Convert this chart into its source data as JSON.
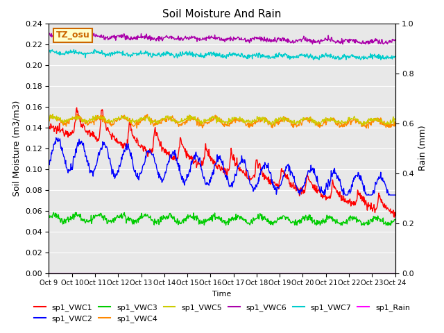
{
  "title": "Soil Moisture And Rain",
  "xlabel": "Time",
  "ylabel_left": "Soil Moisture (m3/m3)",
  "ylabel_right": "Rain (mm)",
  "xlim": [
    0,
    15
  ],
  "ylim_left": [
    0,
    0.24
  ],
  "ylim_right": [
    0.0,
    1.0
  ],
  "xtick_labels": [
    "Oct 9",
    "Oct 10",
    "Oct 11",
    "Oct 12",
    "Oct 13",
    "Oct 14",
    "Oct 15",
    "Oct 16",
    "Oct 17",
    "Oct 18",
    "Oct 19",
    "Oct 20",
    "Oct 21",
    "Oct 22",
    "Oct 23",
    "Oct 24"
  ],
  "yticks_left": [
    0.0,
    0.02,
    0.04,
    0.06,
    0.08,
    0.1,
    0.12,
    0.14,
    0.16,
    0.18,
    0.2,
    0.22,
    0.24
  ],
  "yticks_right": [
    0.0,
    0.2,
    0.4,
    0.6,
    0.8,
    1.0
  ],
  "annotation_text": "TZ_osu",
  "annotation_color": "#cc6600",
  "annotation_bg": "#ffffcc",
  "background_color": "#e8e8e8",
  "colors": {
    "sp1_VWC1": "#ff0000",
    "sp1_VWC2": "#0000ff",
    "sp1_VWC3": "#00cc00",
    "sp1_VWC4": "#ff8800",
    "sp1_VWC5": "#cccc00",
    "sp1_VWC6": "#aa00aa",
    "sp1_VWC7": "#00cccc",
    "sp1_Rain": "#ff00ff"
  }
}
